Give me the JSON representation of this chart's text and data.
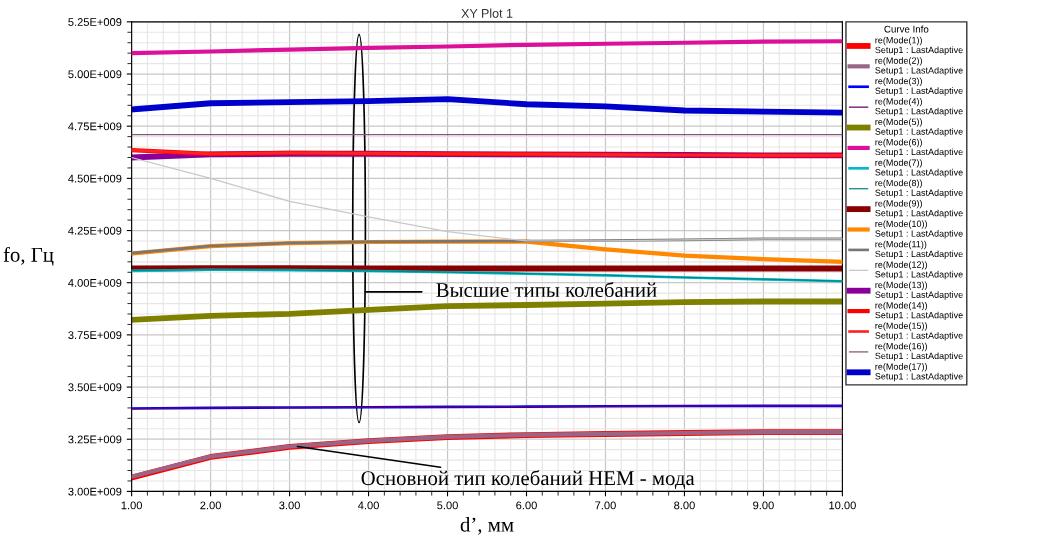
{
  "chart_data": {
    "type": "line",
    "title": "XY Plot 1",
    "xlabel": "d’, мм",
    "ylabel": "fo, Гц",
    "legend_title": "Curve Info",
    "x": [
      1,
      2,
      3,
      4,
      5,
      6,
      7,
      8,
      9,
      10
    ],
    "xlim": [
      1,
      10
    ],
    "xticks": [
      {
        "value": 1,
        "label": "1.00"
      },
      {
        "value": 2,
        "label": "2.00"
      },
      {
        "value": 3,
        "label": "3.00"
      },
      {
        "value": 4,
        "label": "4.00"
      },
      {
        "value": 5,
        "label": "5.00"
      },
      {
        "value": 6,
        "label": "6.00"
      },
      {
        "value": 7,
        "label": "7.00"
      },
      {
        "value": 8,
        "label": "8.00"
      },
      {
        "value": 9,
        "label": "9.00"
      },
      {
        "value": 10,
        "label": "10.00"
      }
    ],
    "ylim": [
      3000000000.0,
      5250000000.0
    ],
    "yticks": [
      {
        "value": 3000000000.0,
        "label": "3.00E+009"
      },
      {
        "value": 3250000000.0,
        "label": "3.25E+009"
      },
      {
        "value": 3500000000.0,
        "label": "3.50E+009"
      },
      {
        "value": 3750000000.0,
        "label": "3.75E+009"
      },
      {
        "value": 4000000000.0,
        "label": "4.00E+009"
      },
      {
        "value": 4250000000.0,
        "label": "4.25E+009"
      },
      {
        "value": 4500000000.0,
        "label": "4.50E+009"
      },
      {
        "value": 4750000000.0,
        "label": "4.75E+009"
      },
      {
        "value": 5000000000.0,
        "label": "5.00E+009"
      },
      {
        "value": 5250000000.0,
        "label": "5.25E+009"
      }
    ],
    "grid": true,
    "legend": "top right",
    "marker": "none",
    "line_style": "solid",
    "annotations": [
      {
        "text": "Основной тип колебаний HEM - мода",
        "x": 3.1,
        "y": 3215000000.0
      },
      "Высшие типы колебаний"
    ],
    "series": [
      {
        "name": "re(Mode(1))\nSetup1 : LastAdaptive",
        "color": "#ff0000",
        "values": [
          3066000000.0,
          3165000000.0,
          3213000000.0,
          3241000000.0,
          3260000000.0,
          3270000000.0,
          3275000000.0,
          3280000000.0,
          3284000000.0,
          3284000000.0
        ]
      },
      {
        "name": "re(Mode(2))\nSetup1 : LastAdaptive",
        "color": "#996688",
        "values": [
          3070000000.0,
          3167000000.0,
          3215000000.0,
          3242000000.0,
          3261000000.0,
          3271000000.0,
          3276000000.0,
          3280000000.0,
          3284000000.0,
          3284000000.0
        ]
      },
      {
        "name": "re(Mode(3))\nSetup1 : LastAdaptive",
        "color": "#0000ff",
        "values": [
          3397000000.0,
          3400000000.0,
          3402000000.0,
          3403000000.0,
          3405000000.0,
          3406000000.0,
          3408000000.0,
          3409000000.0,
          3410000000.0,
          3410000000.0
        ]
      },
      {
        "name": "re(Mode(4))\nSetup1 : LastAdaptive",
        "color": "#660066",
        "values": [
          3397000000.0,
          3400000000.0,
          3402000000.0,
          3403000000.0,
          3405000000.0,
          3406000000.0,
          3408000000.0,
          3409000000.0,
          3410000000.0,
          3410000000.0
        ]
      },
      {
        "name": "re(Mode(5))\nSetup1 : LastAdaptive",
        "color": "#808000",
        "values": [
          3822000000.0,
          3841000000.0,
          3851000000.0,
          3870000000.0,
          3888000000.0,
          3893000000.0,
          3900000000.0,
          3907000000.0,
          3910000000.0,
          3910000000.0
        ]
      },
      {
        "name": "re(Mode(6))\nSetup1 : LastAdaptive",
        "color": "#dd1199",
        "values": [
          5100000000.0,
          5108000000.0,
          5117000000.0,
          5125000000.0,
          5132000000.0,
          5140000000.0,
          5145000000.0,
          5150000000.0,
          5155000000.0,
          5157000000.0
        ]
      },
      {
        "name": "re(Mode(7))\nSetup1 : LastAdaptive",
        "color": "#00bbcc",
        "values": [
          4057000000.0,
          4062000000.0,
          4060000000.0,
          4056000000.0,
          4050000000.0,
          4043000000.0,
          4035000000.0,
          4025000000.0,
          4016000000.0,
          4007000000.0
        ]
      },
      {
        "name": "re(Mode(8))\nSetup1 : LastAdaptive",
        "color": "#008888",
        "values": [
          4059000000.0,
          4063000000.0,
          4061000000.0,
          4057000000.0,
          4051000000.0,
          4044000000.0,
          4036000000.0,
          4026000000.0,
          4017000000.0,
          4008000000.0
        ]
      },
      {
        "name": "re(Mode(9))\nSetup1 : LastAdaptive",
        "color": "#880000",
        "values": [
          4068000000.0,
          4070000000.0,
          4070000000.0,
          4068000000.0,
          4068000000.0,
          4068000000.0,
          4068000000.0,
          4068000000.0,
          4068000000.0,
          4068000000.0
        ]
      },
      {
        "name": "re(Mode(10))\nSetup1 : LastAdaptive",
        "color": "#ff8800",
        "values": [
          4140000000.0,
          4175000000.0,
          4190000000.0,
          4195000000.0,
          4197000000.0,
          4197000000.0,
          4160000000.0,
          4130000000.0,
          4113000000.0,
          4100000000.0
        ]
      },
      {
        "name": "re(Mode(11))\nSetup1 : LastAdaptive",
        "color": "#777777",
        "values": [
          4142000000.0,
          4176000000.0,
          4190000000.0,
          4196000000.0,
          4198000000.0,
          4200000000.0,
          4202000000.0,
          4205000000.0,
          4210000000.0,
          4210000000.0
        ]
      },
      {
        "name": "re(Mode(12))\nSetup1 : LastAdaptive",
        "color": "#c8c8c8",
        "values": [
          4600000000.0,
          4500000000.0,
          4390000000.0,
          4315000000.0,
          4245000000.0,
          4200000000.0,
          4200000000.0,
          4205000000.0,
          4210000000.0,
          4210000000.0
        ]
      },
      {
        "name": "re(Mode(13))\nSetup1 : LastAdaptive",
        "color": "#880099",
        "values": [
          4600000000.0,
          4615000000.0,
          4618000000.0,
          4618000000.0,
          4616000000.0,
          4615000000.0,
          4614000000.0,
          4612000000.0,
          4610000000.0,
          4610000000.0
        ]
      },
      {
        "name": "re(Mode(14))\nSetup1 : LastAdaptive",
        "color": "#ff0000",
        "values": [
          4635000000.0,
          4617000000.0,
          4622000000.0,
          4620000000.0,
          4617000000.0,
          4616000000.0,
          4614000000.0,
          4612000000.0,
          4610000000.0,
          4610000000.0
        ]
      },
      {
        "name": "re(Mode(15))\nSetup1 : LastAdaptive",
        "color": "#ff2222",
        "values": [
          4635000000.0,
          4617000000.0,
          4622000000.0,
          4620000000.0,
          4617000000.0,
          4616000000.0,
          4614000000.0,
          4612000000.0,
          4610000000.0,
          4610000000.0
        ]
      },
      {
        "name": "re(Mode(16))\nSetup1 : LastAdaptive",
        "color": "#885577",
        "values": [
          4710000000.0,
          4710000000.0,
          4710000000.0,
          4710000000.0,
          4710000000.0,
          4710000000.0,
          4710000000.0,
          4710000000.0,
          4710000000.0,
          4710000000.0
        ]
      },
      {
        "name": "re(Mode(17))\nSetup1 : LastAdaptive",
        "color": "#0000cc",
        "values": [
          4830000000.0,
          4860000000.0,
          4865000000.0,
          4870000000.0,
          4880000000.0,
          4855000000.0,
          4845000000.0,
          4825000000.0,
          4820000000.0,
          4815000000.0
        ]
      }
    ]
  }
}
